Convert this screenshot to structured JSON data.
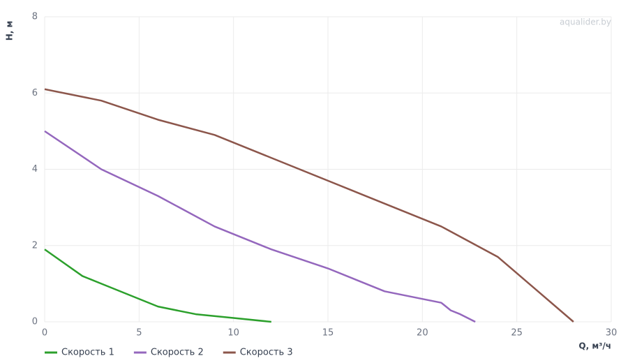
{
  "chart_data": {
    "type": "line",
    "watermark": "aqualider.by",
    "x_label": "Q, м³/ч",
    "y_label": "H, м",
    "xlim": [
      0,
      30
    ],
    "xticks": [
      0,
      5,
      10,
      15,
      20,
      25,
      30
    ],
    "ylim": [
      0,
      8
    ],
    "yticks": [
      0,
      2,
      4,
      6,
      8
    ],
    "grid": true,
    "legend": "bottom",
    "series": [
      {
        "name": "Скорость 1",
        "color": "#2ca02c",
        "x": [
          0,
          2,
          3,
          6,
          8,
          10,
          12
        ],
        "values": [
          1.9,
          1.2,
          1.0,
          0.4,
          0.2,
          0.1,
          0
        ]
      },
      {
        "name": "Скорость 2",
        "color": "#9467bd",
        "x": [
          0,
          3,
          6,
          9,
          12,
          15,
          18,
          21,
          21.5,
          22,
          22.8
        ],
        "values": [
          5,
          4,
          3.3,
          2.5,
          1.9,
          1.4,
          0.8,
          0.5,
          0.3,
          0.2,
          0
        ]
      },
      {
        "name": "Скорость 3",
        "color": "#8c564b",
        "x": [
          0,
          3,
          6,
          9,
          12,
          15,
          18,
          21,
          24,
          28
        ],
        "values": [
          6.1,
          5.8,
          5.3,
          4.9,
          4.3,
          3.7,
          3.1,
          2.5,
          1.7,
          0
        ]
      }
    ]
  }
}
